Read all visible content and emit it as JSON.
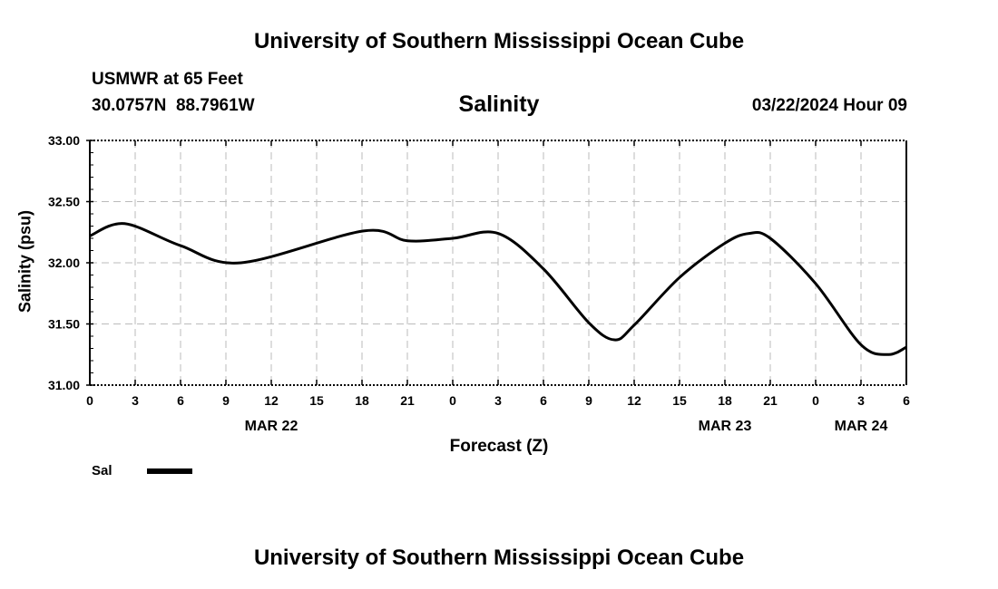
{
  "header": {
    "title": "University of Southern Mississippi Ocean Cube",
    "station": "USMWR at 65 Feet",
    "coords": "30.0757N  88.7961W",
    "date": "03/22/2024 Hour 09",
    "footer": "University of Southern Mississippi Ocean Cube"
  },
  "chart_data": {
    "type": "line",
    "title": "Salinity",
    "xlabel": "Forecast (Z)",
    "ylabel": "Salinity (psu)",
    "xlim": [
      0,
      54
    ],
    "ylim": [
      31.0,
      33.0
    ],
    "yticks": [
      31.0,
      31.5,
      32.0,
      32.5,
      33.0
    ],
    "ytick_labels": [
      "31.00",
      "31.50",
      "32.00",
      "32.50",
      "33.00"
    ],
    "xtick_labels": [
      "0",
      "3",
      "6",
      "9",
      "12",
      "15",
      "18",
      "21",
      "0",
      "3",
      "6",
      "9",
      "12",
      "15",
      "18",
      "21",
      "0",
      "3",
      "6"
    ],
    "date_labels": [
      {
        "hour": 12,
        "label": "MAR 22"
      },
      {
        "hour": 42,
        "label": "MAR 23"
      },
      {
        "hour": 51,
        "label": "MAR 24"
      }
    ],
    "grid": true,
    "legend": {
      "label": "Sal",
      "placement": "bottom-left"
    },
    "series": [
      {
        "name": "Sal",
        "color": "#000000",
        "x": [
          0,
          2.3,
          6,
          10,
          18.1,
          21,
          24,
          27,
          30,
          33,
          34.7,
          36,
          39,
          42,
          43.6,
          45,
          48,
          51,
          52.8,
          54
        ],
        "y": [
          32.22,
          32.32,
          32.14,
          32.0,
          32.26,
          32.18,
          32.2,
          32.24,
          31.95,
          31.51,
          31.37,
          31.49,
          31.88,
          32.16,
          32.24,
          32.2,
          31.83,
          31.33,
          31.25,
          31.31
        ]
      }
    ]
  }
}
